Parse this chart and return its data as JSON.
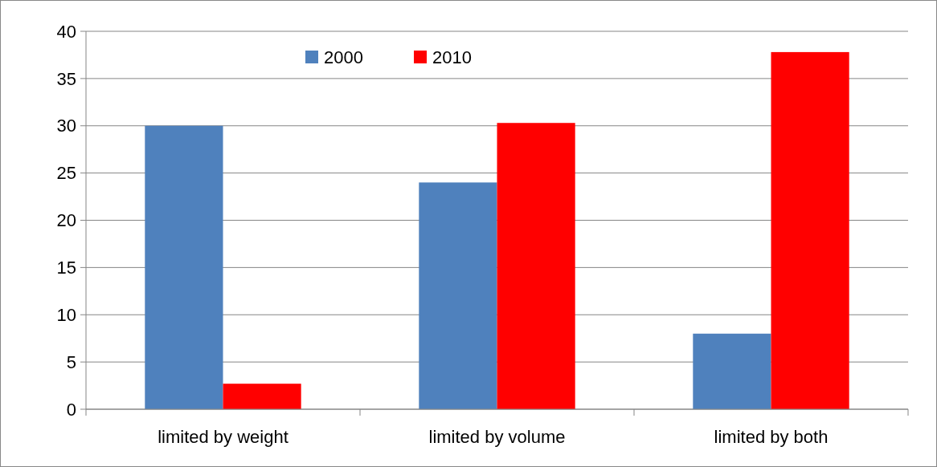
{
  "chart_data": {
    "type": "bar",
    "categories": [
      "limited by weight",
      "limited by volume",
      "limited by both"
    ],
    "series": [
      {
        "name": "2000",
        "color": "#4f81bd",
        "values": [
          30,
          24,
          8
        ]
      },
      {
        "name": "2010",
        "color": "#ff0000",
        "values": [
          2.7,
          30.3,
          37.8
        ]
      }
    ],
    "ylim": [
      0,
      40
    ],
    "yticks": [
      0,
      5,
      10,
      15,
      20,
      25,
      30,
      35,
      40
    ],
    "grid": "y",
    "legend": "top"
  }
}
